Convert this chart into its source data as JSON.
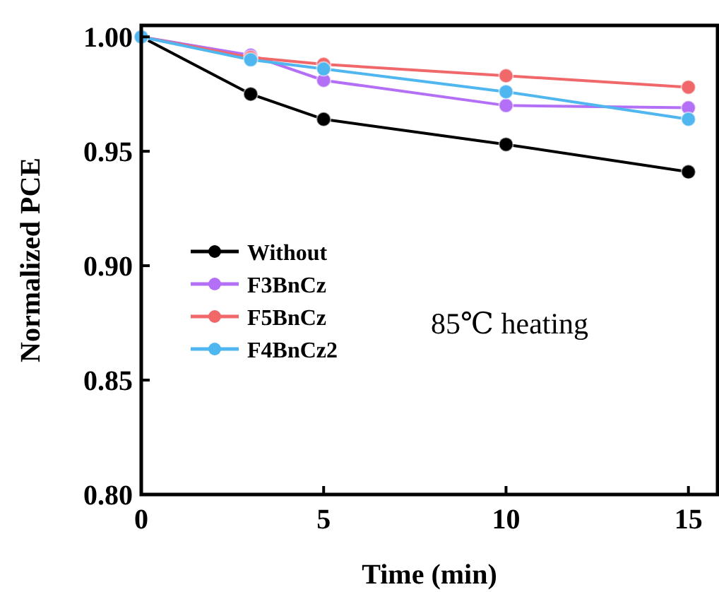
{
  "chart_data": {
    "type": "line",
    "xlabel": "Time (min)",
    "ylabel": "Normalized PCE",
    "x": [
      0,
      3,
      5,
      10,
      15
    ],
    "xlim": [
      0,
      15.8
    ],
    "ylim": [
      0.8,
      1.005
    ],
    "xticks": [
      0,
      5,
      10,
      15
    ],
    "yticks": [
      {
        "value": 0.8,
        "label": "0.80"
      },
      {
        "value": 0.85,
        "label": "0.85"
      },
      {
        "value": 0.9,
        "label": "0.90"
      },
      {
        "value": 0.95,
        "label": "0.95"
      },
      {
        "value": 1,
        "label": "1.00"
      }
    ],
    "marker": "circle",
    "legend": "left",
    "grid": false,
    "annotations": [
      "85℃ heating"
    ],
    "series": [
      {
        "name": "Without",
        "color": "#000000",
        "values": [
          1,
          0.975,
          0.964,
          0.953,
          0.941
        ]
      },
      {
        "name": "F3BnCz",
        "color": "#b36ff5",
        "values": [
          1,
          0.992,
          0.981,
          0.97,
          0.969
        ]
      },
      {
        "name": "F5BnCz",
        "color": "#f0686a",
        "values": [
          1,
          0.991,
          0.988,
          0.983,
          0.978
        ]
      },
      {
        "name": "F4BnCz2",
        "color": "#4fb6f0",
        "values": [
          1,
          0.99,
          0.986,
          0.976,
          0.964
        ]
      }
    ]
  }
}
